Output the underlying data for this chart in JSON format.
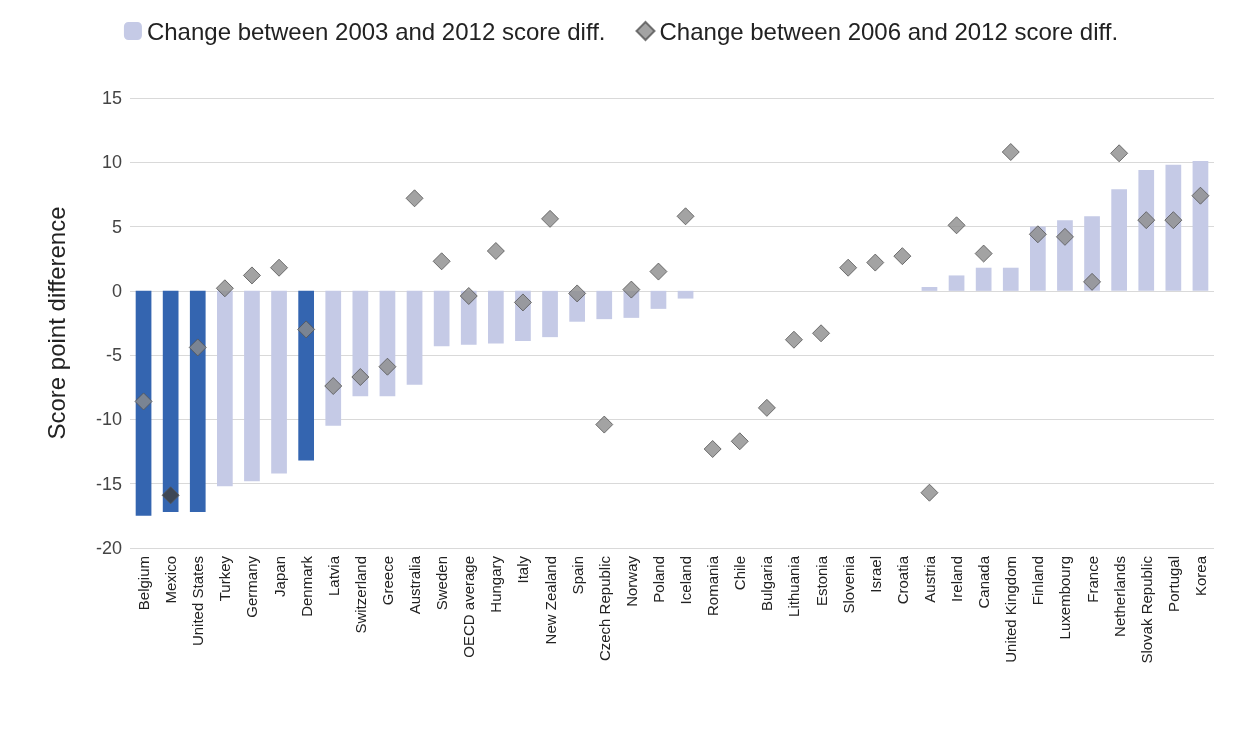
{
  "chart_data": {
    "type": "bar",
    "ylabel": "Score point difference",
    "categories": [
      "Belgium",
      "Mexico",
      "United States",
      "Turkey",
      "Germany",
      "Japan",
      "Denmark",
      "Latvia",
      "Switzerland",
      "Greece",
      "Australia",
      "Sweden",
      "OECD average",
      "Hungary",
      "Italy",
      "New Zealand",
      "Spain",
      "Czech Republic",
      "Norway",
      "Poland",
      "Iceland",
      "Romania",
      "Chile",
      "Bulgaria",
      "Lithuania",
      "Estonia",
      "Slovenia",
      "Israel",
      "Croatia",
      "Austria",
      "Ireland",
      "Canada",
      "United Kingdom",
      "Finland",
      "Luxembourg",
      "France",
      "Netherlands",
      "Slovak Republic",
      "Portugal",
      "Korea"
    ],
    "series": [
      {
        "name": "Change between 2003 and 2012 score diff.",
        "color": "#c5cae6",
        "colors": [
          "#3465b0",
          "#3465b0",
          "#3465b0",
          "#c5cae6",
          "#c5cae6",
          "#c5cae6",
          "#3465b0",
          "#c5cae6",
          "#c5cae6",
          "#c5cae6",
          "#c5cae6",
          "#c5cae6",
          "#c5cae6",
          "#c5cae6",
          "#c5cae6",
          "#c5cae6",
          "#c5cae6",
          "#c5cae6",
          "#c5cae6",
          "#c5cae6",
          "#c5cae6",
          "#c5cae6",
          "#c5cae6",
          "#c5cae6",
          "#c5cae6",
          "#c5cae6",
          "#c5cae6",
          "#c5cae6",
          "#c5cae6",
          "#c5cae6",
          "#c5cae6",
          "#c5cae6",
          "#c5cae6",
          "#c5cae6",
          "#c5cae6",
          "#c5cae6",
          "#c5cae6",
          "#c5cae6",
          "#c5cae6",
          "#c5cae6"
        ],
        "values": [
          -17.5,
          -17.2,
          -17.2,
          -15.2,
          -14.8,
          -14.2,
          -13.2,
          -10.5,
          -8.2,
          -8.2,
          -7.3,
          -4.3,
          -4.2,
          -4.1,
          -3.9,
          -3.6,
          -2.4,
          -2.2,
          -2.1,
          -1.4,
          -0.6,
          null,
          null,
          null,
          null,
          null,
          null,
          null,
          null,
          0.3,
          1.2,
          1.8,
          1.8,
          5.0,
          5.5,
          5.8,
          7.9,
          9.4,
          9.8,
          10.1
        ]
      },
      {
        "name": "Change between 2006 and 2012 score diff.",
        "type": "scatter",
        "marker": "diamond",
        "color": "#8c8c8c",
        "colors": [
          "#8c8c8c",
          "#404040",
          "#8c8c8c",
          "#8c8c8c",
          "#8c8c8c",
          "#8c8c8c",
          "#8c8c8c",
          "#8c8c8c",
          "#8c8c8c",
          "#8c8c8c",
          "#8c8c8c",
          "#8c8c8c",
          "#8c8c8c",
          "#8c8c8c",
          "#8c8c8c",
          "#8c8c8c",
          "#8c8c8c",
          "#8c8c8c",
          "#8c8c8c",
          "#8c8c8c",
          "#8c8c8c",
          "#8c8c8c",
          "#8c8c8c",
          "#8c8c8c",
          "#8c8c8c",
          "#8c8c8c",
          "#8c8c8c",
          "#8c8c8c",
          "#8c8c8c",
          "#8c8c8c",
          "#8c8c8c",
          "#8c8c8c",
          "#8c8c8c",
          "#8c8c8c",
          "#8c8c8c",
          "#8c8c8c",
          "#8c8c8c",
          "#8c8c8c",
          "#8c8c8c",
          "#8c8c8c"
        ],
        "values": [
          -8.6,
          -15.9,
          -4.4,
          0.2,
          1.2,
          1.8,
          -3.0,
          -7.4,
          -6.7,
          -5.9,
          7.2,
          2.3,
          -0.4,
          3.1,
          -0.9,
          5.6,
          -0.2,
          -10.4,
          0.1,
          1.5,
          5.8,
          -12.3,
          -11.7,
          -9.1,
          -3.8,
          -3.3,
          1.8,
          2.2,
          2.7,
          -15.7,
          5.1,
          2.9,
          10.8,
          4.4,
          4.2,
          0.7,
          10.7,
          5.5,
          5.5,
          7.4
        ]
      }
    ],
    "ylim": [
      -20,
      15
    ],
    "yticks": [
      -20,
      -15,
      -10,
      -5,
      0,
      5,
      10,
      15
    ],
    "grid": "y",
    "legend": "top"
  }
}
